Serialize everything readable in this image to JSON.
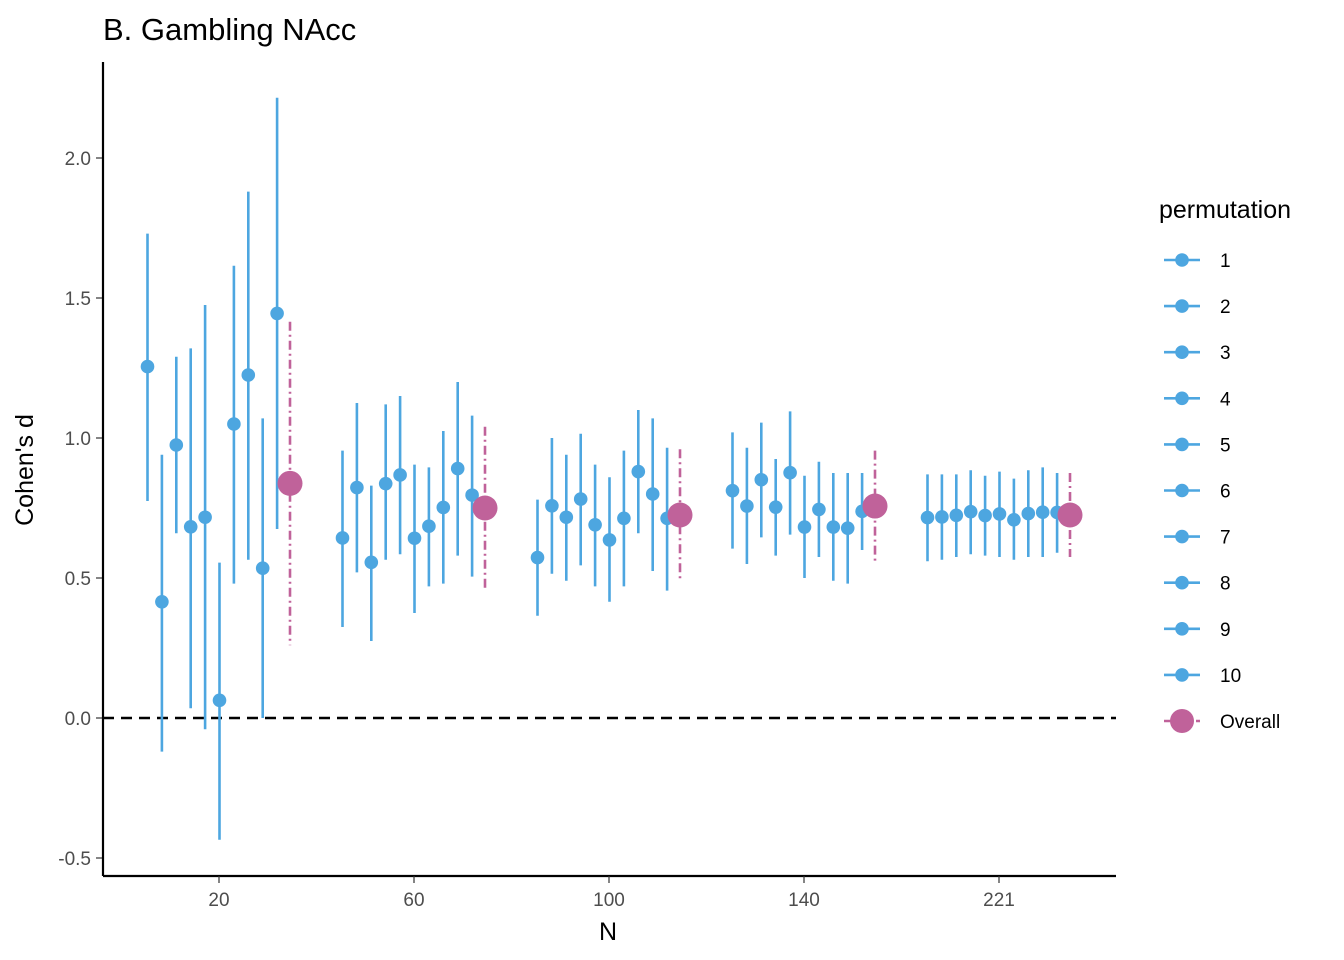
{
  "chart_data": {
    "type": "scatter",
    "title": "B. Gambling NAcc",
    "xlabel": "N",
    "ylabel": "Cohen's d",
    "categories": [
      "20",
      "60",
      "100",
      "140",
      "221"
    ],
    "ylim": [
      -0.55,
      2.35
    ],
    "yticks": [
      "-0.5",
      "0.0",
      "0.5",
      "1.0",
      "1.5",
      "2.0"
    ],
    "reference_line": {
      "y": 0,
      "style": "dashed"
    },
    "grid": false,
    "legend": {
      "title": "permutation",
      "position": "right",
      "entries": [
        "1",
        "2",
        "3",
        "4",
        "5",
        "6",
        "7",
        "8",
        "9",
        "10",
        "Overall"
      ]
    },
    "colors": {
      "permutation": "#4da6e0",
      "overall": "#c0629a"
    },
    "series": [
      {
        "name": "permutation",
        "groups": [
          {
            "category": "20",
            "points": [
              {
                "d": 1.255,
                "lo": 0.775,
                "hi": 1.73
              },
              {
                "d": 0.415,
                "lo": -0.12,
                "hi": 0.94
              },
              {
                "d": 0.975,
                "lo": 0.66,
                "hi": 1.29
              },
              {
                "d": 0.683,
                "lo": 0.035,
                "hi": 1.32
              },
              {
                "d": 0.717,
                "lo": -0.04,
                "hi": 1.475
              },
              {
                "d": 0.063,
                "lo": -0.435,
                "hi": 0.555
              },
              {
                "d": 1.05,
                "lo": 0.48,
                "hi": 1.615
              },
              {
                "d": 1.225,
                "lo": 0.565,
                "hi": 1.88
              },
              {
                "d": 0.535,
                "lo": 0.0,
                "hi": 1.07
              },
              {
                "d": 1.445,
                "lo": 0.675,
                "hi": 2.215
              }
            ]
          },
          {
            "category": "60",
            "points": [
              {
                "d": 0.643,
                "lo": 0.325,
                "hi": 0.955
              },
              {
                "d": 0.823,
                "lo": 0.52,
                "hi": 1.125
              },
              {
                "d": 0.556,
                "lo": 0.275,
                "hi": 0.83
              },
              {
                "d": 0.837,
                "lo": 0.565,
                "hi": 1.12
              },
              {
                "d": 0.868,
                "lo": 0.585,
                "hi": 1.15
              },
              {
                "d": 0.642,
                "lo": 0.375,
                "hi": 0.905
              },
              {
                "d": 0.685,
                "lo": 0.47,
                "hi": 0.895
              },
              {
                "d": 0.752,
                "lo": 0.48,
                "hi": 1.025
              },
              {
                "d": 0.891,
                "lo": 0.58,
                "hi": 1.2
              },
              {
                "d": 0.796,
                "lo": 0.505,
                "hi": 1.08
              }
            ]
          },
          {
            "category": "100",
            "points": [
              {
                "d": 0.573,
                "lo": 0.365,
                "hi": 0.78
              },
              {
                "d": 0.758,
                "lo": 0.515,
                "hi": 1.0
              },
              {
                "d": 0.717,
                "lo": 0.49,
                "hi": 0.94
              },
              {
                "d": 0.782,
                "lo": 0.545,
                "hi": 1.015
              },
              {
                "d": 0.69,
                "lo": 0.47,
                "hi": 0.905
              },
              {
                "d": 0.636,
                "lo": 0.415,
                "hi": 0.86
              },
              {
                "d": 0.713,
                "lo": 0.47,
                "hi": 0.955
              },
              {
                "d": 0.88,
                "lo": 0.66,
                "hi": 1.1
              },
              {
                "d": 0.8,
                "lo": 0.525,
                "hi": 1.07
              },
              {
                "d": 0.713,
                "lo": 0.455,
                "hi": 0.965
              }
            ]
          },
          {
            "category": "140",
            "points": [
              {
                "d": 0.812,
                "lo": 0.605,
                "hi": 1.02
              },
              {
                "d": 0.757,
                "lo": 0.55,
                "hi": 0.965
              },
              {
                "d": 0.851,
                "lo": 0.645,
                "hi": 1.055
              },
              {
                "d": 0.753,
                "lo": 0.58,
                "hi": 0.925
              },
              {
                "d": 0.876,
                "lo": 0.655,
                "hi": 1.095
              },
              {
                "d": 0.682,
                "lo": 0.5,
                "hi": 0.865
              },
              {
                "d": 0.745,
                "lo": 0.575,
                "hi": 0.915
              },
              {
                "d": 0.682,
                "lo": 0.49,
                "hi": 0.875
              },
              {
                "d": 0.678,
                "lo": 0.48,
                "hi": 0.875
              },
              {
                "d": 0.738,
                "lo": 0.6,
                "hi": 0.875
              }
            ]
          },
          {
            "category": "221",
            "points": [
              {
                "d": 0.716,
                "lo": 0.56,
                "hi": 0.87
              },
              {
                "d": 0.718,
                "lo": 0.565,
                "hi": 0.87
              },
              {
                "d": 0.724,
                "lo": 0.575,
                "hi": 0.87
              },
              {
                "d": 0.737,
                "lo": 0.585,
                "hi": 0.885
              },
              {
                "d": 0.723,
                "lo": 0.58,
                "hi": 0.865
              },
              {
                "d": 0.729,
                "lo": 0.575,
                "hi": 0.88
              },
              {
                "d": 0.708,
                "lo": 0.565,
                "hi": 0.855
              },
              {
                "d": 0.73,
                "lo": 0.575,
                "hi": 0.885
              },
              {
                "d": 0.735,
                "lo": 0.575,
                "hi": 0.895
              },
              {
                "d": 0.734,
                "lo": 0.59,
                "hi": 0.875
              }
            ]
          }
        ]
      },
      {
        "name": "Overall",
        "points": [
          {
            "category": "20",
            "d": 0.838,
            "lo": 0.26,
            "hi": 1.415
          },
          {
            "category": "60",
            "d": 0.75,
            "lo": 0.46,
            "hi": 1.04
          },
          {
            "category": "100",
            "d": 0.725,
            "lo": 0.49,
            "hi": 0.96
          },
          {
            "category": "140",
            "d": 0.757,
            "lo": 0.56,
            "hi": 0.955
          },
          {
            "category": "221",
            "d": 0.725,
            "lo": 0.575,
            "hi": 0.875
          }
        ]
      }
    ]
  }
}
